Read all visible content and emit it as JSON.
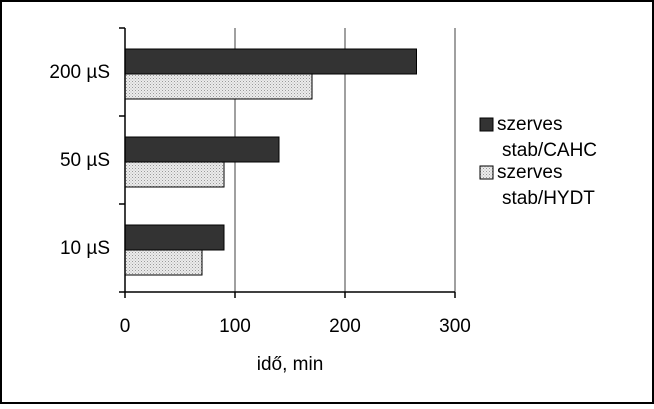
{
  "chart_data": {
    "type": "bar",
    "orientation": "horizontal",
    "categories": [
      "200 µS",
      "50 µS",
      "10 µS"
    ],
    "series": [
      {
        "name": "szerves stab/CAHC",
        "values": [
          265,
          140,
          90
        ],
        "color": "#333333"
      },
      {
        "name": "szerves stab/HYDT",
        "values": [
          170,
          90,
          70
        ],
        "color": "#d9d9d9"
      }
    ],
    "xlabel": "idő, min",
    "ylabel": "",
    "xlim": [
      0,
      300
    ],
    "xticks": [
      "0",
      "100",
      "200",
      "300"
    ],
    "grid": true,
    "legend": "right",
    "legend_lines": [
      [
        "szerves",
        "stab/CAHC"
      ],
      [
        "szerves",
        "stab/HYDT"
      ]
    ]
  }
}
